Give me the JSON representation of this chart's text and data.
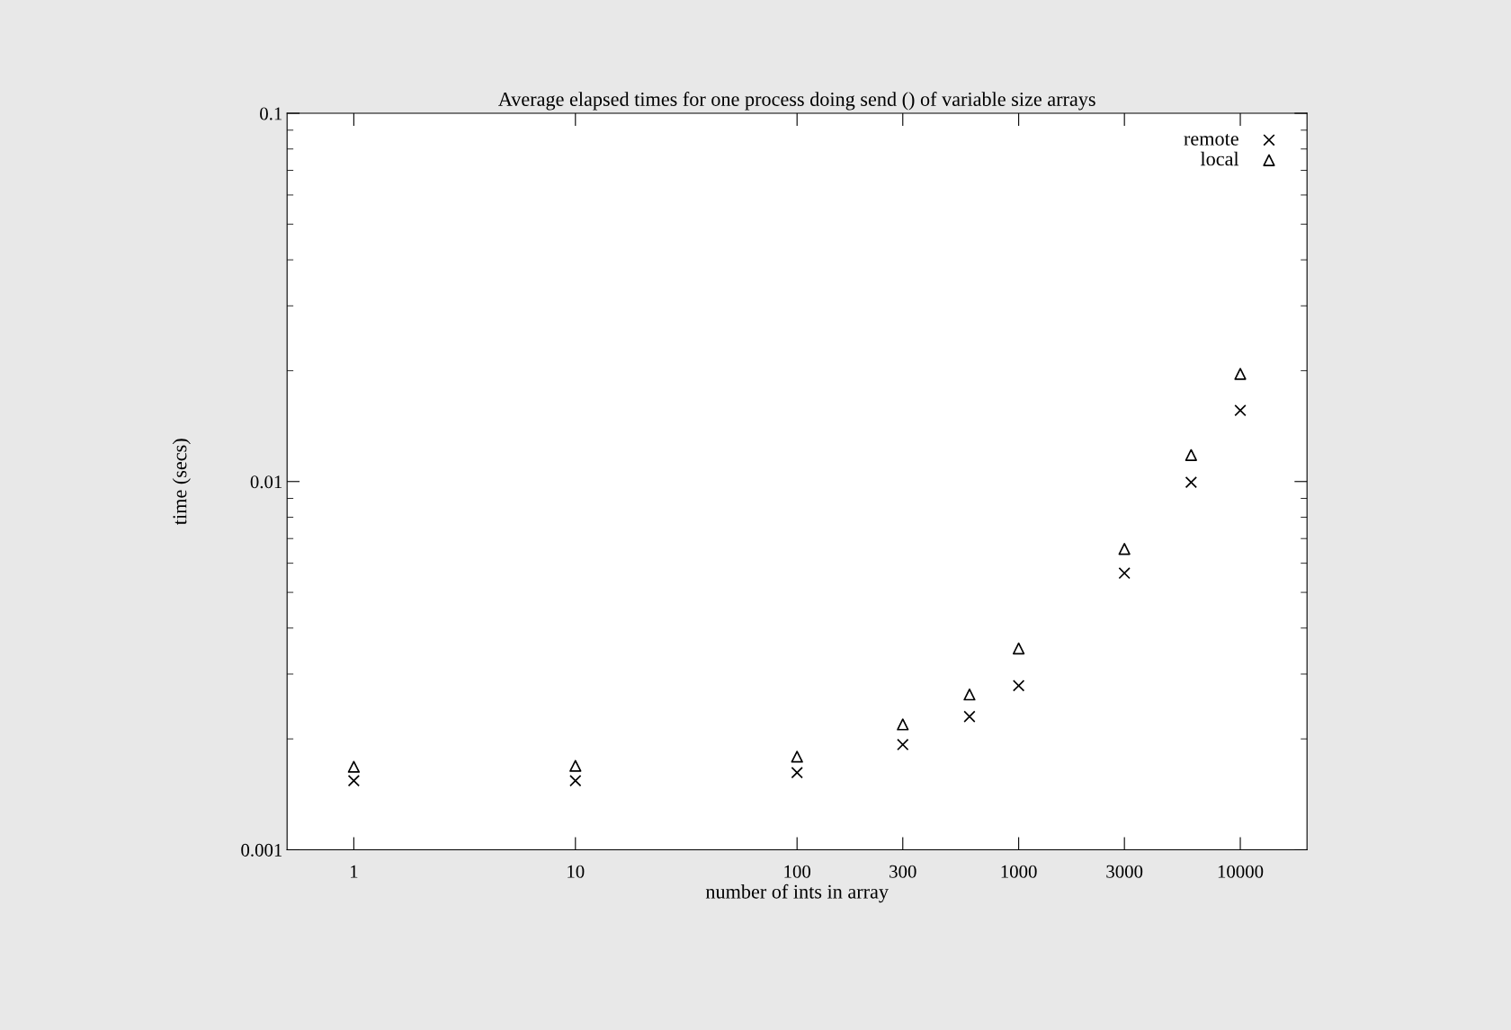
{
  "chart_data": {
    "type": "scatter",
    "title": "Average elapsed times for one process doing send () of variable size arrays",
    "xlabel": "number of ints in array",
    "ylabel": "time (secs)",
    "x": [
      1,
      10,
      100,
      300,
      600,
      1000,
      3000,
      6000,
      10000
    ],
    "series": [
      {
        "name": "remote",
        "color": "#000000",
        "marker": "cross",
        "values": [
          0.00154,
          0.00154,
          0.00162,
          0.00193,
          0.0023,
          0.00279,
          0.00564,
          0.00995,
          0.0156
        ]
      },
      {
        "name": "local",
        "color": "#000000",
        "marker": "triangle",
        "values": [
          0.00168,
          0.00169,
          0.00179,
          0.00219,
          0.00264,
          0.00352,
          0.00656,
          0.0118,
          0.0196
        ]
      }
    ],
    "log": "xy",
    "xlim": [
      0.5,
      20000
    ],
    "ylim": [
      0.001,
      0.1
    ],
    "xticks": [
      1,
      10,
      100,
      300,
      1000,
      3000,
      10000
    ],
    "yticks": [
      0.001,
      0.01,
      0.1
    ],
    "grid": false,
    "legend": "top right"
  }
}
